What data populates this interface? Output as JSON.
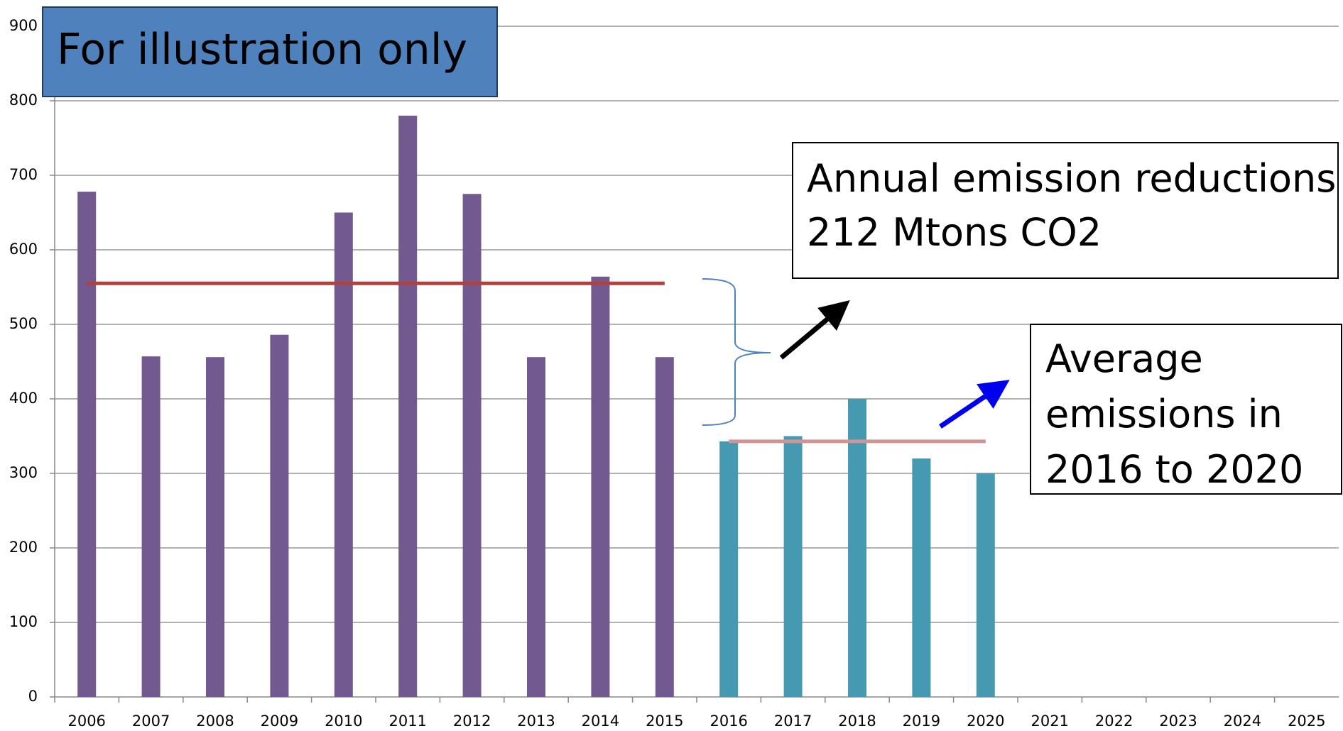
{
  "chart_data": {
    "type": "bar",
    "categories": [
      "2006",
      "2007",
      "2008",
      "2009",
      "2010",
      "2011",
      "2012",
      "2013",
      "2014",
      "2015",
      "2016",
      "2017",
      "2018",
      "2019",
      "2020",
      "2021",
      "2022",
      "2023",
      "2024",
      "2025"
    ],
    "series": [
      {
        "color": "#725a91",
        "values": [
          678,
          457,
          456,
          486,
          650,
          780,
          675,
          456,
          564,
          456,
          null,
          null,
          null,
          null,
          null,
          null,
          null,
          null,
          null,
          null
        ]
      },
      {
        "color": "#4599b0",
        "values": [
          null,
          null,
          null,
          null,
          null,
          null,
          null,
          null,
          null,
          null,
          343,
          350,
          400,
          320,
          300,
          null,
          null,
          null,
          null,
          null
        ]
      },
      {
        "type": "line",
        "color": "#b0413e",
        "values": [
          555,
          555,
          555,
          555,
          555,
          555,
          555,
          555,
          555,
          555,
          null,
          null,
          null,
          null,
          null,
          null,
          null,
          null,
          null,
          null
        ]
      },
      {
        "type": "line",
        "color": "#d09494",
        "values": [
          null,
          null,
          null,
          null,
          null,
          null,
          null,
          null,
          null,
          null,
          343,
          343,
          343,
          343,
          343,
          null,
          null,
          null,
          null,
          null
        ]
      }
    ],
    "ylim": [
      0,
      900
    ],
    "yticks": [
      0,
      100,
      200,
      300,
      400,
      500,
      600,
      700,
      800,
      900
    ],
    "grid": true,
    "title": "For illustration only",
    "annotations": [
      [
        "Annual emission reductions",
        "212  Mtons CO2"
      ],
      [
        "Average",
        "emissions in",
        "2016 to 2020"
      ]
    ]
  }
}
